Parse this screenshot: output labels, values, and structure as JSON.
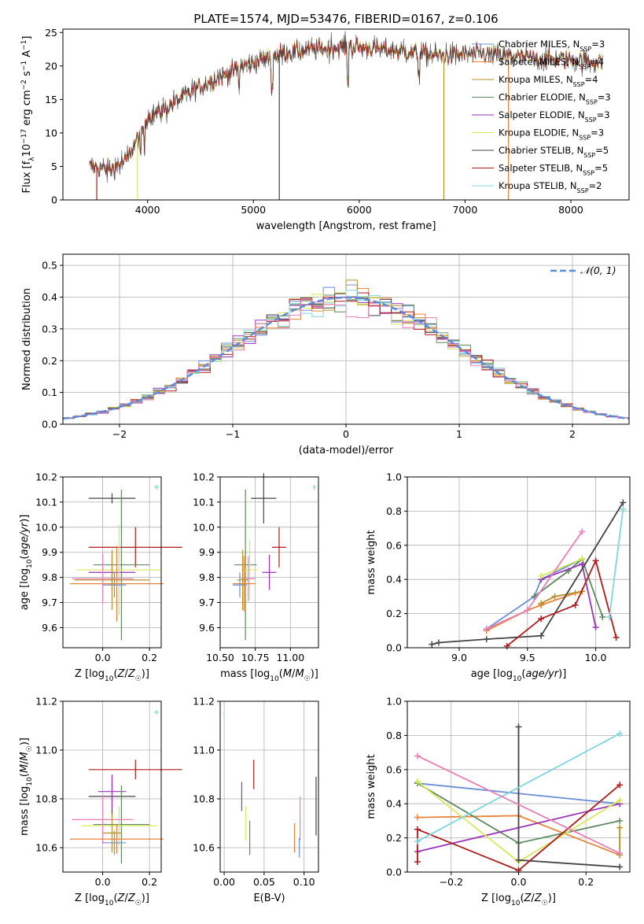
{
  "title": "PLATE=1574, MJD=53476, FIBERID=0167, z=0.106",
  "colors": {
    "Chabrier MILES": "#6b8fd6",
    "Salpeter MILES": "#e8833a",
    "Kroupa MILES": "#b8902a",
    "Chabrier ELODIE": "#5f8a5f",
    "Salpeter ELODIE": "#9a35b8",
    "Kroupa ELODIE": "#d8e85a",
    "Chabrier STELIB": "#444444",
    "Salpeter STELIB": "#b01a1a",
    "Kroupa STELIB": "#7fd6dc",
    "pink": "#e87fb5"
  },
  "chart_data": [
    {
      "type": "line",
      "id": "spectrum",
      "xlabel": "wavelength [Angstrom, rest frame]",
      "ylabel": "Flux [f_λ 10^-17 erg cm^-2 s^-1 A^-1]",
      "xlim": [
        3200,
        8550
      ],
      "ylim": [
        0,
        25.5
      ],
      "xticks": [
        "4000",
        "5000",
        "6000",
        "7000",
        "8000"
      ],
      "yticks": [
        "0",
        "5",
        "10",
        "15",
        "20",
        "25"
      ],
      "legend": [
        {
          "name": "Chabrier MILES",
          "nssp": "3"
        },
        {
          "name": "Salpeter MILES",
          "nssp": "4"
        },
        {
          "name": "Kroupa MILES",
          "nssp": "4"
        },
        {
          "name": "Chabrier ELODIE",
          "nssp": "3"
        },
        {
          "name": "Salpeter ELODIE",
          "nssp": "3"
        },
        {
          "name": "Kroupa ELODIE",
          "nssp": "3"
        },
        {
          "name": "Chabrier STELIB",
          "nssp": "5"
        },
        {
          "name": "Salpeter STELIB",
          "nssp": "5"
        },
        {
          "name": "Kroupa STELIB",
          "nssp": "2"
        }
      ],
      "continuum": [
        [
          3450,
          5
        ],
        [
          3650,
          4.5
        ],
        [
          3800,
          6
        ],
        [
          3900,
          9
        ],
        [
          4000,
          12.5
        ],
        [
          4100,
          13
        ],
        [
          4300,
          15
        ],
        [
          4500,
          17
        ],
        [
          4700,
          18.5
        ],
        [
          4900,
          20
        ],
        [
          5100,
          21
        ],
        [
          5300,
          22
        ],
        [
          5600,
          22.5
        ],
        [
          5900,
          23
        ],
        [
          6200,
          22.5
        ],
        [
          6500,
          22
        ],
        [
          6800,
          21.5
        ],
        [
          7100,
          21.8
        ],
        [
          7400,
          21.5
        ],
        [
          7700,
          21
        ],
        [
          8000,
          21
        ],
        [
          8300,
          20.5
        ]
      ],
      "deep_drops": [
        3520,
        3905,
        5245,
        6800,
        7410
      ]
    },
    {
      "type": "step",
      "id": "residuals",
      "xlabel": "(data-model)/error",
      "ylabel": "Normed distribution",
      "xlim": [
        -2.5,
        2.5
      ],
      "ylim": [
        0,
        0.535
      ],
      "xticks": [
        "−2",
        "−1",
        "0",
        "1",
        "2"
      ],
      "yticks": [
        "0.0",
        "0.1",
        "0.2",
        "0.3",
        "0.4",
        "0.5"
      ],
      "legend": "𝒩(0, 1)",
      "bin_width": 0.1
    },
    {
      "type": "errorbar",
      "id": "age-vs-Z",
      "xlabel": "Z [log10(Z/Z☉)]",
      "ylabel": "age [log10(age/yr)]",
      "xlim": [
        -0.17,
        0.25
      ],
      "ylim": [
        9.52,
        10.2
      ],
      "xticks": [
        "0.0",
        "0.2"
      ],
      "yticks": [
        "9.6",
        "9.7",
        "9.8",
        "9.9",
        "10.0",
        "10.1",
        "10.2"
      ]
    },
    {
      "type": "errorbar",
      "id": "age-vs-mass",
      "xlabel": "mass [log10(M/M☉)]",
      "xlim": [
        10.5,
        11.2
      ],
      "ylim": [
        9.52,
        10.2
      ],
      "xticks": [
        "10.50",
        "10.75",
        "11.00"
      ],
      "yticks": [
        "9.6",
        "9.7",
        "9.8",
        "9.9",
        "10.0",
        "10.1",
        "10.2"
      ]
    },
    {
      "type": "line",
      "id": "mass-weight-vs-age",
      "xlabel": "age [log10(age/yr)]",
      "ylabel": "mass weight",
      "xlim": [
        8.62,
        10.25
      ],
      "ylim": [
        0,
        1
      ],
      "xticks": [
        "9.0",
        "9.5",
        "10.0"
      ],
      "yticks": [
        "0.0",
        "0.2",
        "0.4",
        "0.6",
        "0.8",
        "1.0"
      ],
      "series": [
        {
          "key": "Chabrier MILES",
          "x": [
            9.2,
            9.55,
            9.6,
            9.9
          ],
          "y": [
            0.11,
            0.3,
            0.4,
            0.52
          ]
        },
        {
          "key": "Salpeter MILES",
          "x": [
            9.2,
            9.5,
            9.6,
            9.85,
            9.9
          ],
          "y": [
            0.1,
            0.22,
            0.25,
            0.32,
            0.33
          ]
        },
        {
          "key": "Kroupa MILES",
          "x": [
            9.6,
            9.7,
            9.9
          ],
          "y": [
            0.26,
            0.3,
            0.33
          ]
        },
        {
          "key": "Chabrier ELODIE",
          "x": [
            9.55,
            9.8,
            9.9,
            10.05
          ],
          "y": [
            0.3,
            0.45,
            0.52,
            0.18
          ]
        },
        {
          "key": "Salpeter ELODIE",
          "x": [
            9.6,
            9.9,
            10.0
          ],
          "y": [
            0.4,
            0.49,
            0.12
          ]
        },
        {
          "key": "Kroupa ELODIE",
          "x": [
            9.6,
            9.9
          ],
          "y": [
            0.42,
            0.52
          ]
        },
        {
          "key": "Chabrier STELIB",
          "x": [
            8.8,
            8.85,
            9.2,
            9.6,
            10.2
          ],
          "y": [
            0.02,
            0.03,
            0.05,
            0.07,
            0.85
          ]
        },
        {
          "key": "Salpeter STELIB",
          "x": [
            9.35,
            9.6,
            9.85,
            10.0,
            10.15
          ],
          "y": [
            0.01,
            0.17,
            0.25,
            0.51,
            0.06
          ]
        },
        {
          "key": "Kroupa STELIB",
          "x": [
            10.1,
            10.2
          ],
          "y": [
            0.18,
            0.81
          ]
        },
        {
          "key": "pink",
          "x": [
            9.2,
            9.5,
            9.9
          ],
          "y": [
            0.11,
            0.22,
            0.68
          ]
        }
      ]
    },
    {
      "type": "errorbar",
      "id": "mass-vs-Z",
      "xlabel": "Z [log10(Z/Z☉)]",
      "ylabel": "mass [log10(M/M☉)]",
      "xlim": [
        -0.17,
        0.25
      ],
      "ylim": [
        10.5,
        11.2
      ],
      "xticks": [
        "0.0",
        "0.2"
      ],
      "yticks": [
        "10.6",
        "10.8",
        "11.0",
        "11.2"
      ]
    },
    {
      "type": "errorbar",
      "id": "mass-vs-ebv",
      "xlabel": "E(B-V)",
      "xlim": [
        -0.005,
        0.118
      ],
      "ylim": [
        10.5,
        11.2
      ],
      "xticks": [
        "0.00",
        "0.05",
        "0.10"
      ],
      "yticks": [
        "10.6",
        "10.8",
        "11.0",
        "11.2"
      ]
    },
    {
      "type": "line",
      "id": "mass-weight-vs-Z",
      "xlabel": "Z [log10(Z/Z☉)]",
      "ylabel": "mass weight",
      "xlim": [
        -0.33,
        0.33
      ],
      "ylim": [
        0,
        1
      ],
      "xticks": [
        "−0.2",
        "0.0",
        "0.2"
      ],
      "yticks": [
        "0.0",
        "0.2",
        "0.4",
        "0.6",
        "0.8",
        "1.0"
      ],
      "series": [
        {
          "key": "Chabrier MILES",
          "x": [
            -0.3,
            0.3
          ],
          "y": [
            0.52,
            0.4
          ]
        },
        {
          "key": "Salpeter MILES",
          "x": [
            -0.3,
            0.0,
            0.3
          ],
          "y": [
            0.32,
            0.33,
            0.1
          ]
        },
        {
          "key": "Kroupa MILES",
          "x": [
            0.3,
            0.3
          ],
          "y": [
            0.26,
            0.1
          ]
        },
        {
          "key": "Chabrier ELODIE",
          "x": [
            -0.3,
            0.0,
            0.3
          ],
          "y": [
            0.52,
            0.17,
            0.3
          ]
        },
        {
          "key": "Salpeter ELODIE",
          "x": [
            -0.3,
            0.3
          ],
          "y": [
            0.12,
            0.4
          ]
        },
        {
          "key": "Kroupa ELODIE",
          "x": [
            -0.3,
            0.0,
            0.3
          ],
          "y": [
            0.53,
            0.06,
            0.42
          ]
        },
        {
          "key": "Chabrier STELIB",
          "x": [
            0.0,
            0.0,
            0.3
          ],
          "y": [
            0.85,
            0.07,
            0.03
          ]
        },
        {
          "key": "Salpeter STELIB",
          "x": [
            -0.3,
            -0.3,
            0.0,
            0.3
          ],
          "y": [
            0.06,
            0.25,
            0.01,
            0.51
          ]
        },
        {
          "key": "Kroupa STELIB",
          "x": [
            -0.3,
            0.3
          ],
          "y": [
            0.18,
            0.81
          ]
        },
        {
          "key": "pink",
          "x": [
            -0.3,
            0.3
          ],
          "y": [
            0.68,
            0.11
          ]
        }
      ]
    }
  ]
}
